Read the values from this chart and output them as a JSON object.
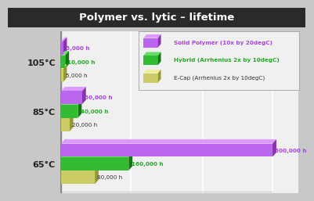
{
  "title": "Polymer vs. lytic – lifetime",
  "title_color": "white",
  "title_bg": "#2a2a2a",
  "bg_color": "#c8c8c8",
  "plot_bg": "#f0f0f0",
  "wall_color": "#888888",
  "grid_color": "#d0d0d0",
  "categories": [
    "105°C",
    "85°C",
    "65°C"
  ],
  "series": [
    {
      "name": "Solid Polymer (10x by 20degC)",
      "color": "#bb66ee",
      "color_top": "#dd99ff",
      "color_side": "#8833aa",
      "values": [
        5000,
        50000,
        500000
      ]
    },
    {
      "name": "Hybrid (Arrhenius 2x by 10degC)",
      "color": "#33bb33",
      "color_top": "#66dd66",
      "color_side": "#117711",
      "values": [
        10000,
        40000,
        160000
      ]
    },
    {
      "name": "E-Cap (Arrhenius 2x by 10degC)",
      "color": "#cccc66",
      "color_top": "#eeee99",
      "color_side": "#999933",
      "values": [
        5000,
        20000,
        80000
      ]
    }
  ],
  "value_labels": [
    [
      "5,000 h",
      "50,000 h",
      "500,000 h"
    ],
    [
      "10,000 h",
      "40,000 h",
      "160,000 h"
    ],
    [
      "5,000 h",
      "20,000 h",
      "80,000 h"
    ]
  ],
  "label_colors": [
    "#aa44dd",
    "#22aa22",
    "#333333"
  ],
  "max_val": 500000,
  "legend_names": [
    "Solid Polymer (10x by 20degC)",
    "Hybrid (Arrhenius 2x by 10degC)",
    "E-Cap (Arrhenius 2x by 10degC)"
  ],
  "legend_colors": [
    "#bb66ee",
    "#33bb33",
    "#cccc66"
  ],
  "legend_text_colors": [
    "#aa44dd",
    "#22aa22",
    "#333333"
  ]
}
